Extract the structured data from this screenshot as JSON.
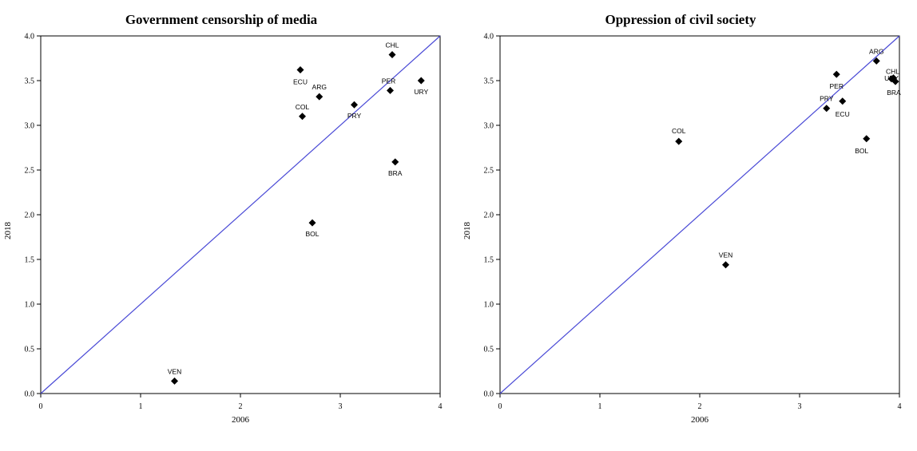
{
  "chart_data": [
    {
      "type": "scatter",
      "title": "Government censorship of media",
      "xlabel": "2006",
      "ylabel": "2018",
      "xlim": [
        0,
        4
      ],
      "ylim": [
        0,
        4
      ],
      "xticks": [
        "0",
        "1",
        "2",
        "3",
        "4"
      ],
      "yticks": [
        "0.0",
        "0.5",
        "1.0",
        "1.5",
        "2.0",
        "2.5",
        "3.0",
        "3.5",
        "4.0"
      ],
      "reference_line": "y = x",
      "line_color": "#4a4ad6",
      "point_color": "#000000",
      "points": [
        {
          "label": "ECU",
          "x": 2.6,
          "y": 3.62
        },
        {
          "label": "ARG",
          "x": 2.79,
          "y": 3.32
        },
        {
          "label": "COL",
          "x": 2.62,
          "y": 3.1
        },
        {
          "label": "CHL",
          "x": 3.52,
          "y": 3.79
        },
        {
          "label": "PER",
          "x": 3.5,
          "y": 3.39
        },
        {
          "label": "URY",
          "x": 3.81,
          "y": 3.5
        },
        {
          "label": "PRY",
          "x": 3.14,
          "y": 3.23
        },
        {
          "label": "BRA",
          "x": 3.55,
          "y": 2.59
        },
        {
          "label": "BOL",
          "x": 2.72,
          "y": 1.91
        },
        {
          "label": "VEN",
          "x": 1.34,
          "y": 0.14
        }
      ]
    },
    {
      "type": "scatter",
      "title": "Oppression of civil society",
      "xlabel": "2006",
      "ylabel": "2018",
      "xlim": [
        0,
        4
      ],
      "ylim": [
        0,
        4
      ],
      "xticks": [
        "0",
        "1",
        "2",
        "3",
        "4"
      ],
      "yticks": [
        "0.0",
        "0.5",
        "1.0",
        "1.5",
        "2.0",
        "2.5",
        "3.0",
        "3.5",
        "4.0"
      ],
      "reference_line": "y = x",
      "line_color": "#4a4ad6",
      "point_color": "#000000",
      "points": [
        {
          "label": "ARG",
          "x": 3.77,
          "y": 3.72
        },
        {
          "label": "PER",
          "x": 3.37,
          "y": 3.57
        },
        {
          "label": "CHL",
          "x": 3.94,
          "y": 3.53
        },
        {
          "label": "URY",
          "x": 3.92,
          "y": 3.52
        },
        {
          "label": "BRA",
          "x": 3.96,
          "y": 3.49
        },
        {
          "label": "PRY",
          "x": 3.27,
          "y": 3.19
        },
        {
          "label": "ECU",
          "x": 3.43,
          "y": 3.27
        },
        {
          "label": "BOL",
          "x": 3.67,
          "y": 2.85
        },
        {
          "label": "COL",
          "x": 1.79,
          "y": 2.82
        },
        {
          "label": "VEN",
          "x": 2.26,
          "y": 1.44
        }
      ]
    }
  ]
}
